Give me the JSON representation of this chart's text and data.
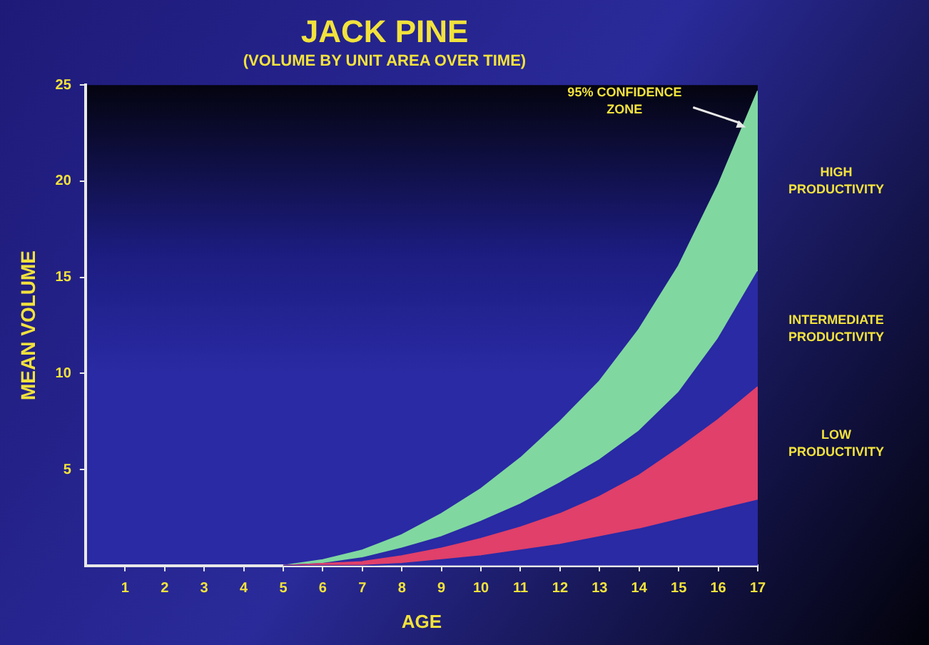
{
  "chart_data": {
    "type": "area",
    "stacked": true,
    "title": "JACK PINE",
    "subtitle": "(VOLUME BY UNIT AREA OVER TIME)",
    "xlabel": "AGE",
    "ylabel": "MEAN VOLUME",
    "xlim": [
      0,
      17
    ],
    "xticks": [
      1,
      2,
      3,
      4,
      5,
      6,
      7,
      8,
      9,
      10,
      11,
      12,
      13,
      14,
      15,
      16,
      17
    ],
    "ylim": [
      0,
      25
    ],
    "yticks": [
      5,
      10,
      15,
      20,
      25
    ],
    "grid": false,
    "legend": false,
    "x": [
      5,
      6,
      7,
      8,
      9,
      10,
      11,
      12,
      13,
      14,
      15,
      16,
      17
    ],
    "series": [
      {
        "color": "#2a2aa4",
        "values": [
          0,
          0,
          0,
          0.1,
          0.3,
          0.5,
          0.8,
          1.1,
          1.5,
          1.9,
          2.4,
          2.9,
          3.4
        ]
      },
      {
        "name": "LOW PRODUCTIVITY",
        "color": "#e0406a",
        "values": [
          0,
          0.1,
          0.2,
          0.4,
          0.6,
          0.9,
          1.2,
          1.6,
          2.1,
          2.8,
          3.7,
          4.7,
          5.9
        ]
      },
      {
        "color": "#2a2aa4",
        "values": [
          0,
          0,
          0.2,
          0.4,
          0.6,
          0.9,
          1.2,
          1.6,
          1.9,
          2.3,
          2.9,
          4.2,
          6.0
        ]
      },
      {
        "name": "HIGH PRODUCTIVITY",
        "color": "#80d8a0",
        "values": [
          0,
          0.2,
          0.4,
          0.7,
          1.2,
          1.7,
          2.4,
          3.2,
          4.1,
          5.3,
          6.6,
          8.0,
          9.4
        ]
      }
    ],
    "annotations": [
      {
        "text": "95% CONFIDENCE ZONE",
        "x": 16.7,
        "y": 22.8
      },
      "INTERMEDIATE PRODUCTIVITY"
    ]
  }
}
